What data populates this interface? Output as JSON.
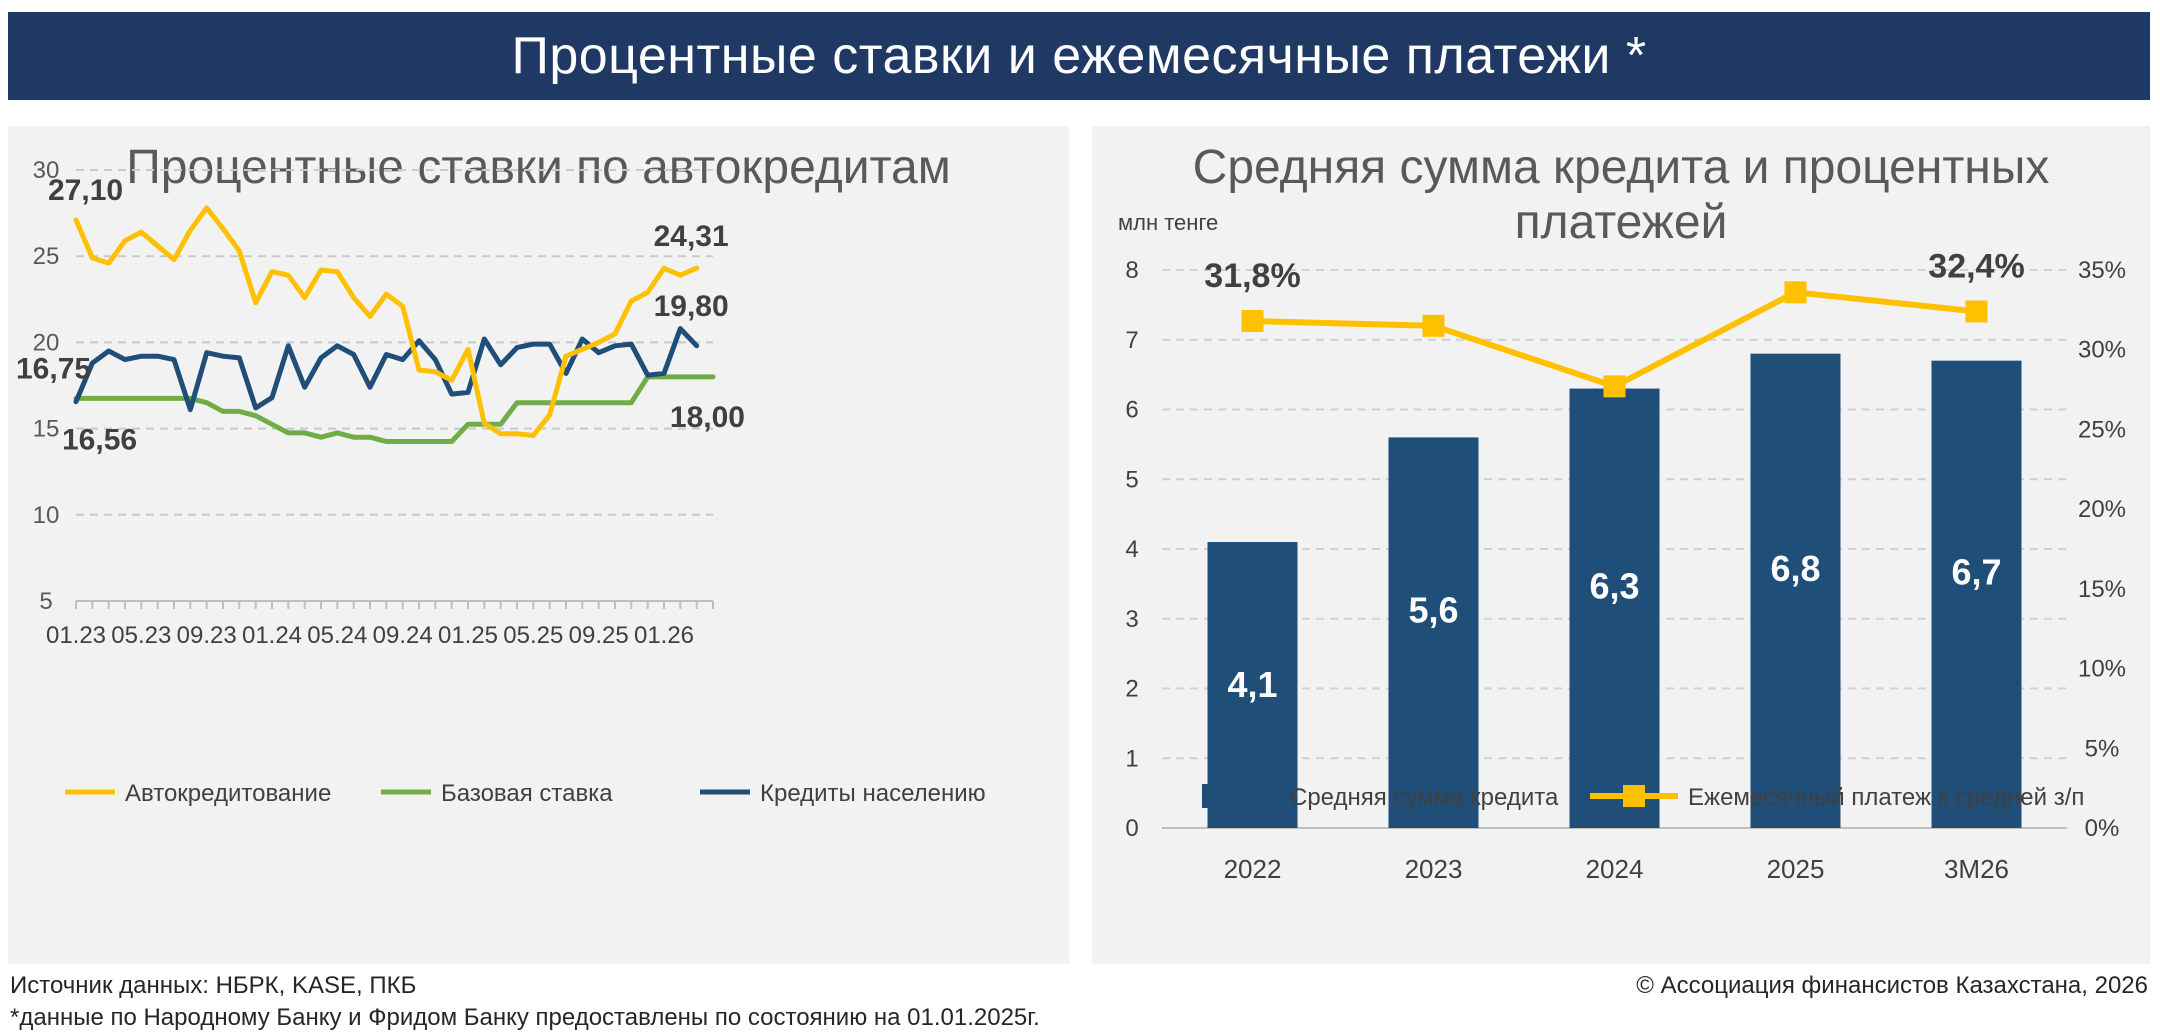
{
  "header": {
    "title": "Процентные ставки и ежемесячные платежи *"
  },
  "colors": {
    "banner": "#1f3864",
    "auto": "#ffc000",
    "base": "#70ad47",
    "retail": "#1f4e79",
    "bars": "#1f4e79",
    "payment": "#ffc000"
  },
  "chart_data": [
    {
      "type": "line",
      "title": "Процентные ставки по автокредитам",
      "ylim": [
        5,
        30
      ],
      "yticks": [
        "5",
        "10",
        "15",
        "20",
        "25",
        "30"
      ],
      "x": [
        "01.23",
        "02.23",
        "03.23",
        "04.23",
        "05.23",
        "06.23",
        "07.23",
        "08.23",
        "09.23",
        "10.23",
        "11.23",
        "12.23",
        "01.24",
        "02.24",
        "03.24",
        "04.24",
        "05.24",
        "06.24",
        "07.24",
        "08.24",
        "09.24",
        "10.24",
        "11.24",
        "12.24",
        "01.25",
        "02.25",
        "03.25",
        "04.25",
        "05.25",
        "06.25",
        "07.25",
        "08.25",
        "09.25",
        "10.25",
        "11.25",
        "12.25",
        "01.26",
        "02.26",
        "03.26",
        "04.26"
      ],
      "xtick_labels": [
        "01.23",
        "05.23",
        "09.23",
        "01.24",
        "05.24",
        "09.24",
        "01.25",
        "05.25",
        "09.25",
        "01.26"
      ],
      "grid": "horizontal dashed",
      "legend_position": "bottom",
      "series": [
        {
          "name": "Автокредитование",
          "values": [
            27.1,
            24.9,
            24.6,
            25.9,
            26.4,
            25.6,
            24.8,
            26.5,
            27.8,
            26.6,
            25.3,
            22.3,
            24.1,
            23.9,
            22.6,
            24.2,
            24.1,
            22.6,
            21.5,
            22.8,
            22.1,
            18.4,
            18.3,
            17.8,
            19.6,
            15.3,
            14.7,
            14.7,
            14.6,
            15.8,
            19.2,
            19.6,
            20.0,
            20.5,
            22.4,
            22.9,
            24.3,
            23.9,
            24.31,
            null
          ],
          "first_label": "27,10",
          "last_label": "24,31"
        },
        {
          "name": "Базовая ставка",
          "values": [
            16.75,
            16.75,
            16.75,
            16.75,
            16.75,
            16.75,
            16.75,
            16.75,
            16.5,
            16.0,
            16.0,
            15.75,
            15.25,
            14.75,
            14.75,
            14.5,
            14.75,
            14.5,
            14.5,
            14.25,
            14.25,
            14.25,
            14.25,
            14.25,
            15.25,
            15.25,
            15.25,
            16.5,
            16.5,
            16.5,
            16.5,
            16.5,
            16.5,
            16.5,
            16.5,
            18.0,
            18.0,
            18.0,
            18.0,
            18.0
          ],
          "first_label": "16,75",
          "last_label": "18,00"
        },
        {
          "name": "Кредиты населению",
          "values": [
            16.56,
            18.8,
            19.5,
            19.0,
            19.2,
            19.2,
            19.0,
            16.1,
            19.4,
            19.2,
            19.1,
            16.2,
            16.8,
            19.8,
            17.4,
            19.1,
            19.8,
            19.3,
            17.4,
            19.3,
            19.0,
            20.1,
            19.0,
            17.0,
            17.1,
            20.2,
            18.7,
            19.7,
            19.9,
            19.9,
            18.2,
            20.2,
            19.4,
            19.8,
            19.9,
            18.1,
            18.2,
            20.8,
            19.8,
            null
          ],
          "first_label": "16,56",
          "last_label": "19,80"
        }
      ]
    },
    {
      "type": "bar",
      "title": "Средняя сумма кредита и процентных платежей",
      "unit_label": "млн тенге",
      "categories": [
        "2022",
        "2023",
        "2024",
        "2025",
        "3M26"
      ],
      "ylim": [
        0,
        8
      ],
      "yticks": [
        "0",
        "1",
        "2",
        "3",
        "4",
        "5",
        "6",
        "7",
        "8"
      ],
      "y2lim": [
        0,
        35
      ],
      "y2ticks": [
        "0%",
        "5%",
        "10%",
        "15%",
        "20%",
        "25%",
        "30%",
        "35%"
      ],
      "legend_position": "bottom",
      "series": [
        {
          "name": "Средняя сумма кредита",
          "axis": "left",
          "values": [
            4.1,
            5.6,
            6.3,
            6.8,
            6.7
          ],
          "labels": [
            "4,1",
            "5,6",
            "6,3",
            "6,8",
            "6,7"
          ]
        },
        {
          "name": "Ежемесячный платеж к средней з/п",
          "axis": "right",
          "type": "line",
          "values": [
            31.8,
            31.5,
            27.7,
            33.6,
            32.4
          ],
          "labels": [
            "31,8%",
            "",
            "",
            "",
            "32,4%"
          ]
        }
      ]
    }
  ],
  "footer": {
    "source": "Источник данных: НБРК, KASE, ПКБ",
    "note": "*данные по Народному Банку и Фридом Банку предоставлены по состоянию на 01.01.2025г.",
    "copyright": "© Ассоциация финансистов Казахстана, 2026"
  }
}
